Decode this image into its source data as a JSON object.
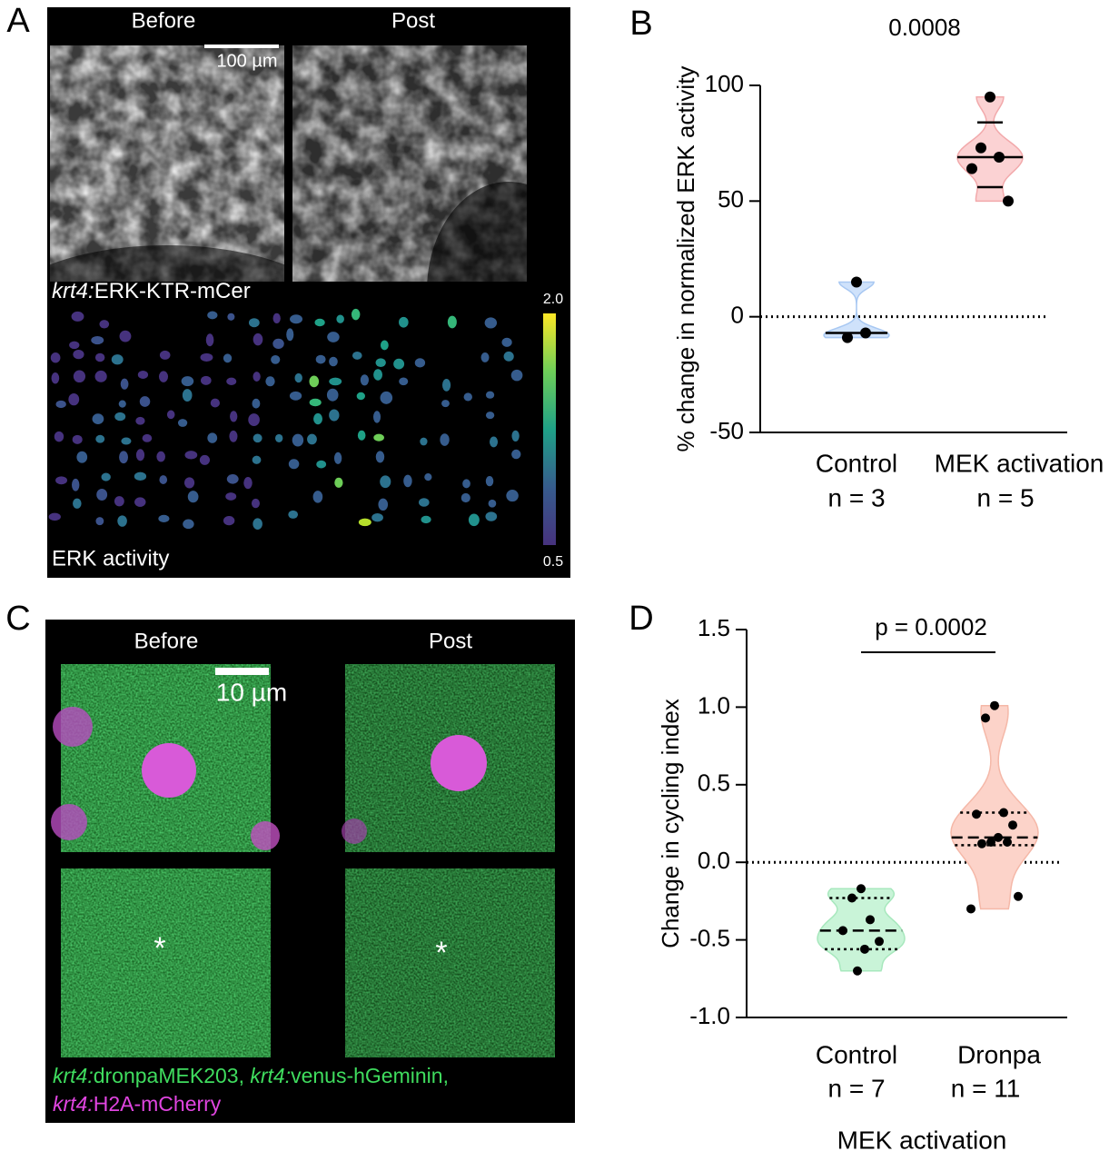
{
  "panel_labels": [
    "A",
    "B",
    "C",
    "D"
  ],
  "panel_a": {
    "columns": [
      "Before",
      "Post"
    ],
    "scale_bar": "100 µm",
    "reporter_prefix": "krt4:",
    "reporter_name": "ERK-KTR-mCer",
    "map_label": "ERK activity",
    "colorbar_max": "2.0",
    "colorbar_min": "0.5"
  },
  "panel_c": {
    "columns": [
      "Before",
      "Post"
    ],
    "scale_bar": "10 µm",
    "asterisks": [
      "*",
      "*"
    ],
    "caption": [
      {
        "prefix": "krt4:",
        "name": "dronpaMEK203, "
      },
      {
        "prefix": "krt4:",
        "name": "venus-hGeminin,"
      },
      {
        "prefix": "krt4:",
        "name": "H2A-mCherry"
      }
    ]
  },
  "chart_data": [
    {
      "type": "violin",
      "y_label": "% change in normalized ERK activity",
      "annotation": "0.0008",
      "ylim": [
        -50,
        100
      ],
      "yticks": [
        -50,
        0,
        50,
        100
      ],
      "reference_line": 0,
      "categories": [
        "Control",
        "MEK activation"
      ],
      "n_labels": [
        "n = 3",
        "n = 5"
      ],
      "groups": [
        {
          "color": "#cfe2fb",
          "edge_color": "#a8c8f2",
          "values": [
            15,
            -9,
            -7
          ],
          "median": -7,
          "median_style": "solid"
        },
        {
          "color": "#fbd2d3",
          "edge_color": "#f2a9ab",
          "values": [
            95,
            73,
            69,
            64,
            50
          ],
          "median": 69,
          "quartiles": [
            56,
            84
          ],
          "median_style": "solid",
          "quartile_style": "solid"
        }
      ]
    },
    {
      "type": "violin",
      "y_label": "Change in cycling index",
      "x_label": "MEK activation",
      "annotation": "p = 0.0002",
      "ylim": [
        -1,
        1.5
      ],
      "yticks": [
        1.5,
        {
          "value": 1,
          "label": "1.0"
        },
        0.5,
        {
          "value": 0,
          "label": "0.0"
        },
        -0.5,
        {
          "value": -1,
          "label": "-1.0"
        }
      ],
      "reference_line": 0,
      "categories": [
        "Control",
        "Dronpa"
      ],
      "n_labels": [
        "n = 7",
        "n = 11"
      ],
      "groups": [
        {
          "color": "#c9f4d8",
          "edge_color": "#a7e8bd",
          "values": [
            -0.17,
            -0.23,
            -0.37,
            -0.44,
            -0.51,
            -0.56,
            -0.7
          ],
          "median": -0.44,
          "quartiles": [
            -0.56,
            -0.23
          ],
          "median_style": "dashed",
          "quartile_style": "dotted"
        },
        {
          "color": "#fcd3c9",
          "edge_color": "#f5b8a8",
          "values": [
            1.01,
            0.93,
            0.32,
            0.31,
            0.24,
            0.16,
            0.13,
            0.13,
            0.12,
            -0.22,
            -0.3
          ],
          "median": 0.16,
          "quartiles": [
            0.11,
            0.32
          ],
          "median_style": "dashed",
          "quartile_style": "dotted"
        }
      ]
    }
  ]
}
